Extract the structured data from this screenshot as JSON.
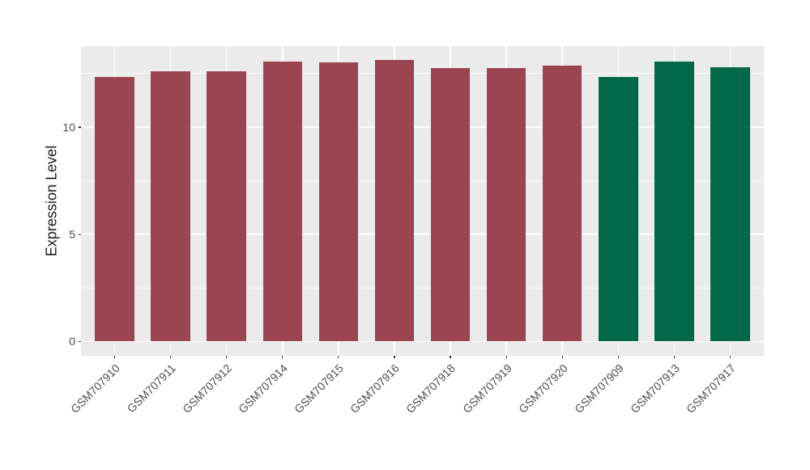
{
  "figure": {
    "background": "#FFFFFF",
    "panel_background": "#EBEBEB",
    "grid_major_color": "#FFFFFF",
    "grid_minor_color": "#F7F7F7",
    "axis_text_color": "#4D4D4D",
    "axis_title_color": "#1A1A1A"
  },
  "chart_data": {
    "type": "bar",
    "title": "",
    "xlabel": "",
    "ylabel": "Expression Level",
    "ylim": [
      -0.67,
      13.78
    ],
    "yticks": [
      {
        "value": 0,
        "label": "0"
      },
      {
        "value": 5,
        "label": "5"
      },
      {
        "value": 10,
        "label": "10"
      }
    ],
    "yticks_minor": [
      2.5,
      7.5,
      12.5
    ],
    "grid": "on",
    "legend": "none",
    "categories": [
      "GSM707910",
      "GSM707911",
      "GSM707912",
      "GSM707914",
      "GSM707915",
      "GSM707916",
      "GSM707918",
      "GSM707919",
      "GSM707920",
      "GSM707909",
      "GSM707913",
      "GSM707917"
    ],
    "values": [
      12.35,
      12.62,
      12.6,
      13.08,
      13.02,
      13.12,
      12.77,
      12.75,
      12.88,
      12.36,
      13.06,
      12.8
    ],
    "groups": [
      "red",
      "red",
      "red",
      "red",
      "red",
      "red",
      "red",
      "red",
      "red",
      "green",
      "green",
      "green"
    ],
    "palette": {
      "red": "#9C4552",
      "green": "#006847"
    }
  }
}
